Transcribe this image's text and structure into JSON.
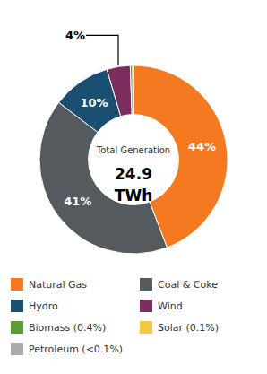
{
  "chart_data": {
    "type": "pie",
    "categories": [
      "Natural Gas",
      "Coal & Coke",
      "Hydro",
      "Wind",
      "Biomass (0.4%)",
      "Solar (0.1%)",
      "Petroleum (<0.1%)"
    ],
    "values": [
      44.0,
      41.0,
      10.0,
      4.0,
      0.4,
      0.1,
      0.05
    ],
    "value_labels": [
      "44%",
      "41%",
      "10%",
      "4%",
      null,
      null,
      null
    ],
    "colors": [
      "#F47920",
      "#555A5F",
      "#1B4F72",
      "#7B2D5E",
      "#5B9C35",
      "#F5C842",
      "#AAAAAA"
    ],
    "annotations": [
      "Total Generation",
      "24.9",
      "TWh"
    ],
    "data_labels": true,
    "legend": "bottom"
  }
}
